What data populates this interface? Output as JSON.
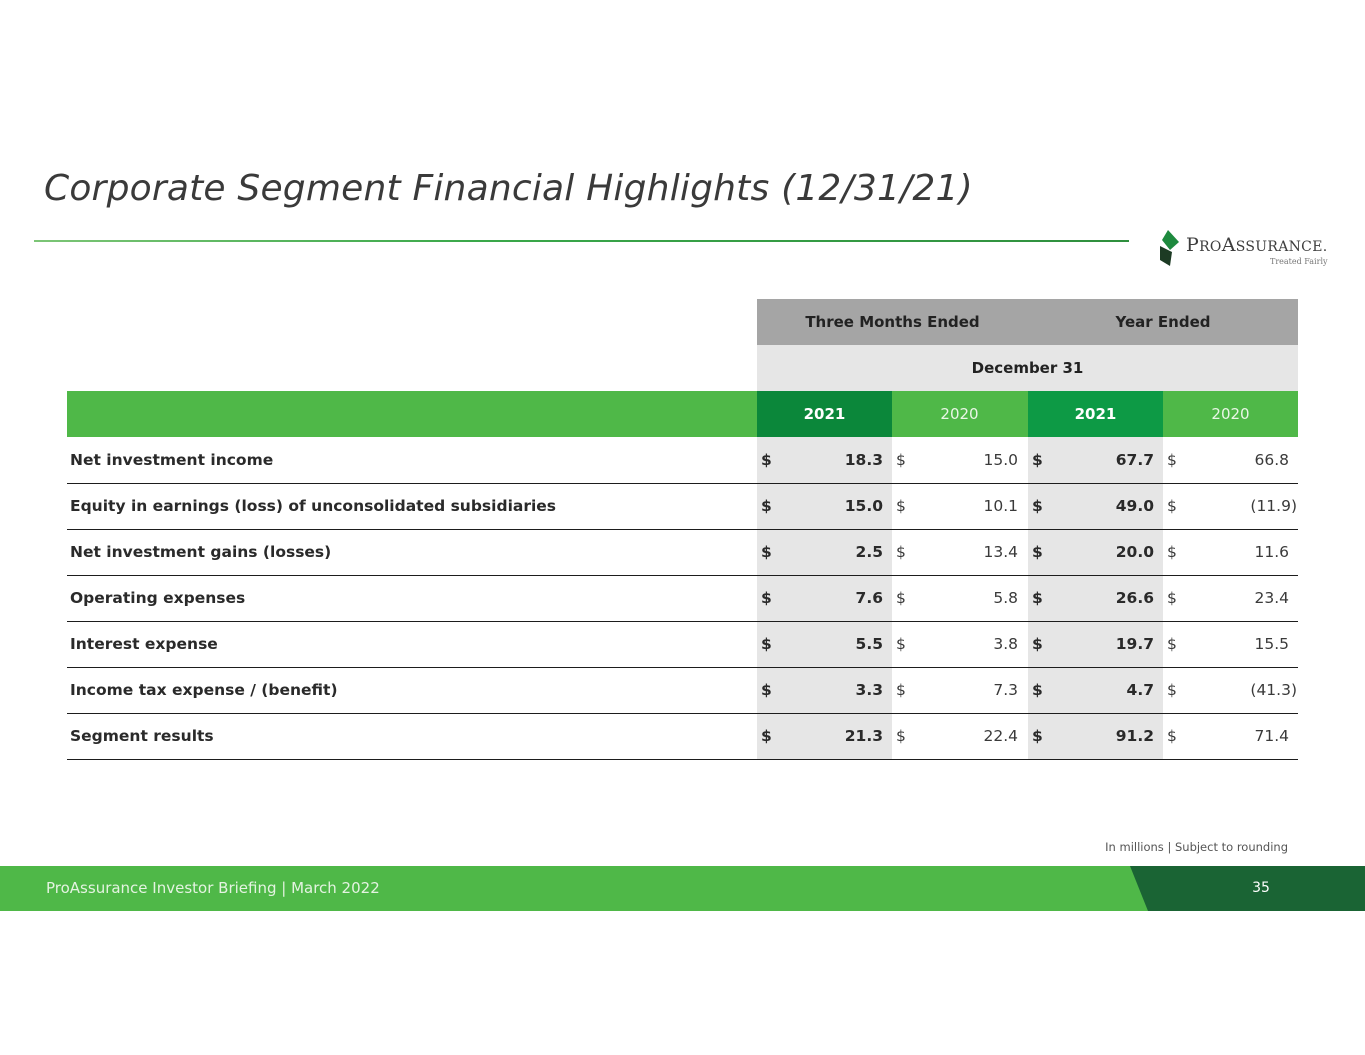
{
  "slide": {
    "title": "Corporate Segment Financial Highlights (12/31/21)",
    "note": "In millions | Subject to rounding",
    "footer": "ProAssurance Investor Briefing | March 2022",
    "page_number": "35"
  },
  "logo": {
    "brand_initial_p": "P",
    "brand_ro": "RO",
    "brand_initial_a": "A",
    "brand_ssurance": "SSURANCE",
    "brand_mark": ".",
    "tagline": "Treated Fairly",
    "colors": {
      "green": "#1e8a3e",
      "dark": "#1d3b24"
    }
  },
  "table": {
    "group_headers": [
      "Three Months Ended",
      "Year Ended"
    ],
    "date_header": "December 31",
    "year_headers": [
      "2021",
      "2020",
      "2021",
      "2020"
    ],
    "rows": [
      {
        "label": "Net investment income",
        "cells": [
          {
            "cur": "$",
            "val": "18.3"
          },
          {
            "cur": "$",
            "val": "15.0"
          },
          {
            "cur": "$",
            "val": "67.7"
          },
          {
            "cur": "$",
            "val": "66.8"
          }
        ]
      },
      {
        "label": "Equity in earnings (loss) of unconsolidated subsidiaries",
        "cells": [
          {
            "cur": "$",
            "val": "15.0"
          },
          {
            "cur": "$",
            "val": "10.1"
          },
          {
            "cur": "$",
            "val": "49.0"
          },
          {
            "cur": "$",
            "val": "(11.9)"
          }
        ]
      },
      {
        "label": "Net investment gains (losses)",
        "cells": [
          {
            "cur": "$",
            "val": "2.5"
          },
          {
            "cur": "$",
            "val": "13.4"
          },
          {
            "cur": "$",
            "val": "20.0"
          },
          {
            "cur": "$",
            "val": "11.6"
          }
        ]
      },
      {
        "label": "Operating expenses",
        "cells": [
          {
            "cur": "$",
            "val": "7.6"
          },
          {
            "cur": "$",
            "val": "5.8"
          },
          {
            "cur": "$",
            "val": "26.6"
          },
          {
            "cur": "$",
            "val": "23.4"
          }
        ]
      },
      {
        "label": "Interest expense",
        "cells": [
          {
            "cur": "$",
            "val": "5.5"
          },
          {
            "cur": "$",
            "val": "3.8"
          },
          {
            "cur": "$",
            "val": "19.7"
          },
          {
            "cur": "$",
            "val": "15.5"
          }
        ]
      },
      {
        "label": "Income tax expense / (benefit)",
        "cells": [
          {
            "cur": "$",
            "val": "3.3"
          },
          {
            "cur": "$",
            "val": "7.3"
          },
          {
            "cur": "$",
            "val": "4.7"
          },
          {
            "cur": "$",
            "val": "(41.3)"
          }
        ]
      },
      {
        "label": "Segment results",
        "cells": [
          {
            "cur": "$",
            "val": "21.3"
          },
          {
            "cur": "$",
            "val": "22.4"
          },
          {
            "cur": "$",
            "val": "91.2"
          },
          {
            "cur": "$",
            "val": "71.4"
          }
        ]
      }
    ]
  },
  "colors": {
    "accent_green": "#4fb848",
    "dark_green": "#1a6434",
    "header_gray": "#a5a5a5",
    "light_gray": "#e6e6e6"
  }
}
